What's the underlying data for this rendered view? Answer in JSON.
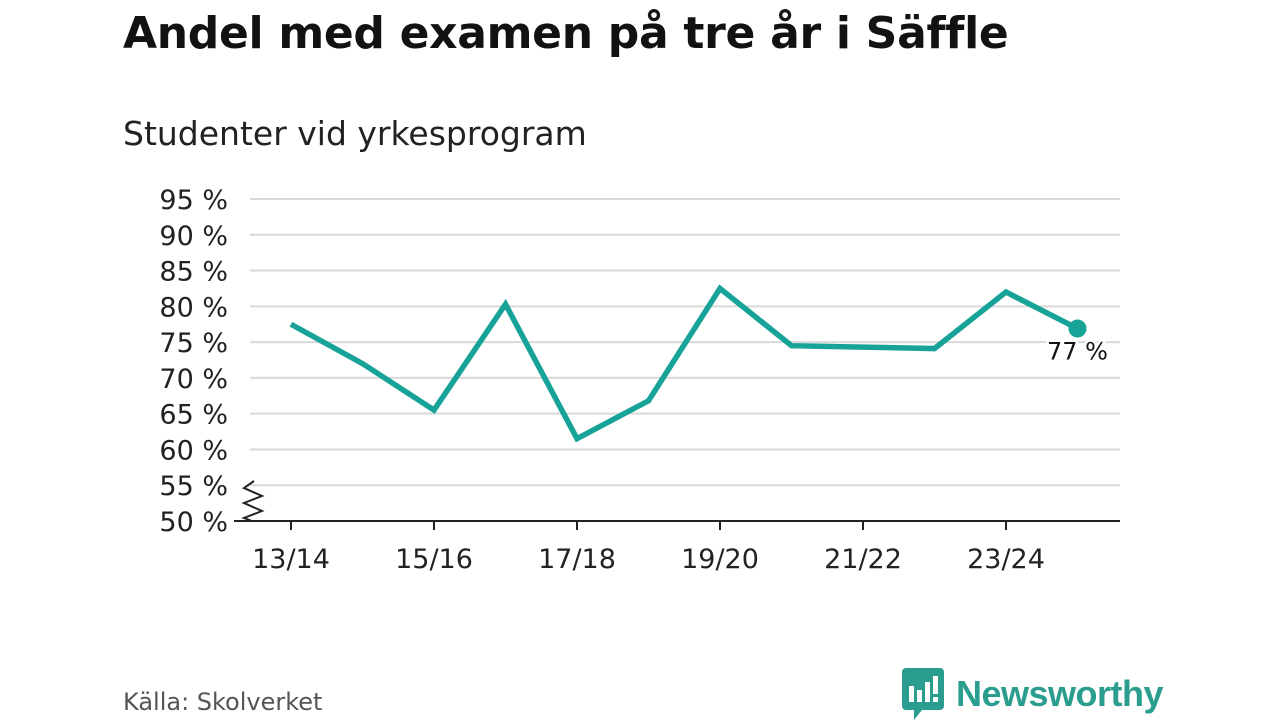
{
  "title": "Andel med examen på tre år i Säffle",
  "subtitle": "Studenter vid yrkesprogram",
  "source": "Källa: Skolverket",
  "brand": {
    "name": "Newsworthy",
    "icon": "newsworthy-logo-icon",
    "color": "#2a9d8f"
  },
  "chart_data": {
    "type": "line",
    "title": "Andel med examen på tre år i Säffle",
    "subtitle": "Studenter vid yrkesprogram",
    "categories": [
      "13/14",
      "14/15",
      "15/16",
      "16/17",
      "17/18",
      "18/19",
      "19/20",
      "20/21",
      "21/22",
      "22/23",
      "23/24",
      "24/25"
    ],
    "x_tick_labels": [
      "13/14",
      "",
      "15/16",
      "",
      "17/18",
      "",
      "19/20",
      "",
      "21/22",
      "",
      "23/24",
      ""
    ],
    "series": [
      {
        "name": "Studenter vid yrkesprogram",
        "values": [
          77.5,
          72,
          65.5,
          80.3,
          61.5,
          66.8,
          82.5,
          74.5,
          74.3,
          74.1,
          82,
          76.9
        ],
        "color": "#17a398"
      }
    ],
    "y_ticks": [
      50,
      55,
      60,
      65,
      70,
      75,
      80,
      85,
      90,
      95
    ],
    "y_tick_labels": [
      "50 %",
      "55 %",
      "60 %",
      "65 %",
      "70 %",
      "75 %",
      "80 %",
      "85 %",
      "90 %",
      "95 %"
    ],
    "ylim": [
      50,
      95
    ],
    "axis_break": true,
    "last_value_label": "77 %",
    "grid": true,
    "xlabel": "",
    "ylabel": ""
  }
}
